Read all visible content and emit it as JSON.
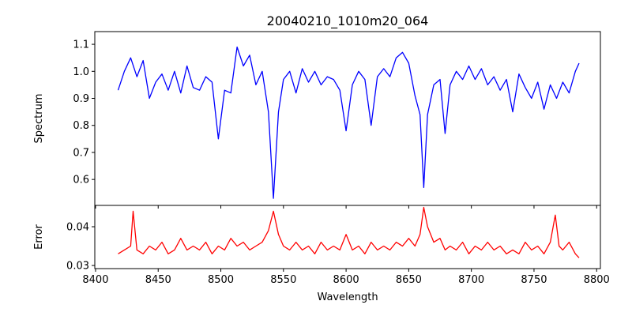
{
  "chart_data": [
    {
      "type": "line",
      "title": "20040210_1010m20_064",
      "xlabel": "",
      "ylabel": "Spectrum",
      "color": "#0000ff",
      "xlim": [
        8399.4,
        8803
      ],
      "ylim": [
        0.504,
        1.147
      ],
      "yticks": [
        0.6,
        0.7,
        0.8,
        0.9,
        1.0,
        1.1
      ],
      "ytick_labels": [
        "0.6",
        "0.7",
        "0.8",
        "0.9",
        "1.0",
        "1.1"
      ],
      "x": [
        8418,
        8423,
        8428,
        8433,
        8438,
        8443,
        8448,
        8453,
        8458,
        8463,
        8468,
        8473,
        8478,
        8483,
        8488,
        8493,
        8498,
        8503,
        8508,
        8513,
        8518,
        8523,
        8528,
        8533,
        8538,
        8542,
        8546,
        8550,
        8555,
        8560,
        8565,
        8570,
        8575,
        8580,
        8585,
        8590,
        8595,
        8600,
        8605,
        8610,
        8615,
        8620,
        8625,
        8630,
        8635,
        8640,
        8645,
        8650,
        8655,
        8659,
        8662,
        8665,
        8670,
        8675,
        8679,
        8683,
        8688,
        8693,
        8698,
        8703,
        8708,
        8713,
        8718,
        8723,
        8728,
        8733,
        8738,
        8743,
        8748,
        8753,
        8758,
        8763,
        8768,
        8773,
        8778,
        8783,
        8786
      ],
      "y": [
        0.93,
        1.0,
        1.05,
        0.98,
        1.04,
        0.9,
        0.96,
        0.99,
        0.93,
        1.0,
        0.92,
        1.02,
        0.94,
        0.93,
        0.98,
        0.96,
        0.75,
        0.93,
        0.92,
        1.09,
        1.02,
        1.06,
        0.95,
        1.0,
        0.85,
        0.53,
        0.85,
        0.97,
        1.0,
        0.92,
        1.01,
        0.96,
        1.0,
        0.95,
        0.98,
        0.97,
        0.93,
        0.78,
        0.95,
        1.0,
        0.97,
        0.8,
        0.98,
        1.01,
        0.98,
        1.05,
        1.07,
        1.03,
        0.91,
        0.84,
        0.57,
        0.84,
        0.95,
        0.97,
        0.77,
        0.95,
        1.0,
        0.97,
        1.02,
        0.97,
        1.01,
        0.95,
        0.98,
        0.93,
        0.97,
        0.85,
        0.99,
        0.94,
        0.9,
        0.96,
        0.86,
        0.95,
        0.9,
        0.96,
        0.92,
        1.0,
        1.03
      ]
    },
    {
      "type": "line",
      "xlabel": "Wavelength",
      "ylabel": "Error",
      "color": "#ff0000",
      "xlim": [
        8399.4,
        8803
      ],
      "ylim": [
        0.0292,
        0.0455
      ],
      "xticks": [
        8400,
        8450,
        8500,
        8550,
        8600,
        8650,
        8700,
        8750,
        8800
      ],
      "xtick_labels": [
        "8400",
        "8450",
        "8500",
        "8550",
        "8600",
        "8650",
        "8700",
        "8750",
        "8800"
      ],
      "yticks": [
        0.03,
        0.04
      ],
      "ytick_labels": [
        "0.03",
        "0.04"
      ],
      "x": [
        8418,
        8423,
        8428,
        8430,
        8433,
        8438,
        8443,
        8448,
        8453,
        8458,
        8463,
        8468,
        8473,
        8478,
        8483,
        8488,
        8493,
        8498,
        8503,
        8508,
        8513,
        8518,
        8523,
        8528,
        8533,
        8538,
        8542,
        8546,
        8550,
        8555,
        8560,
        8565,
        8570,
        8575,
        8580,
        8585,
        8590,
        8595,
        8600,
        8605,
        8610,
        8615,
        8620,
        8625,
        8630,
        8635,
        8640,
        8645,
        8650,
        8655,
        8659,
        8662,
        8665,
        8670,
        8675,
        8679,
        8683,
        8688,
        8693,
        8698,
        8703,
        8708,
        8713,
        8718,
        8723,
        8728,
        8733,
        8738,
        8743,
        8748,
        8753,
        8758,
        8763,
        8767,
        8770,
        8773,
        8778,
        8783,
        8786
      ],
      "y": [
        0.033,
        0.034,
        0.035,
        0.044,
        0.034,
        0.033,
        0.035,
        0.034,
        0.036,
        0.033,
        0.034,
        0.037,
        0.034,
        0.035,
        0.034,
        0.036,
        0.033,
        0.035,
        0.034,
        0.037,
        0.035,
        0.036,
        0.034,
        0.035,
        0.036,
        0.039,
        0.044,
        0.038,
        0.035,
        0.034,
        0.036,
        0.034,
        0.035,
        0.033,
        0.036,
        0.034,
        0.035,
        0.034,
        0.038,
        0.034,
        0.035,
        0.033,
        0.036,
        0.034,
        0.035,
        0.034,
        0.036,
        0.035,
        0.037,
        0.035,
        0.038,
        0.045,
        0.04,
        0.036,
        0.037,
        0.034,
        0.035,
        0.034,
        0.036,
        0.033,
        0.035,
        0.034,
        0.036,
        0.034,
        0.035,
        0.033,
        0.034,
        0.033,
        0.036,
        0.034,
        0.035,
        0.033,
        0.036,
        0.043,
        0.035,
        0.034,
        0.036,
        0.033,
        0.032
      ]
    }
  ]
}
